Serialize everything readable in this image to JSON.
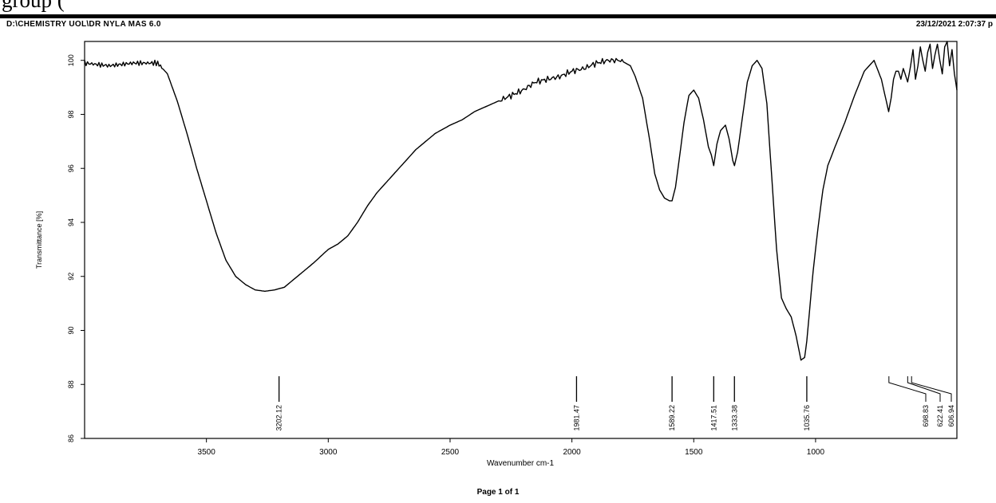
{
  "top_fragment": "group (",
  "header": {
    "path": "D:\\CHEMISTRY UOL\\DR NYLA MAS 6.0",
    "datetime": "23/12/2021   2:07:37 p"
  },
  "footer": {
    "page": "Page 1 of 1"
  },
  "chart_data": {
    "type": "line",
    "title": "",
    "xlabel": "Wavenumber cm-1",
    "ylabel": "Transmittance [%]",
    "xlim": [
      4000,
      420
    ],
    "ylim": [
      86,
      100.7
    ],
    "x_reversed": true,
    "grid": false,
    "xticks": [
      3500,
      3000,
      2500,
      2000,
      1500,
      1000
    ],
    "yticks": [
      86,
      88,
      90,
      92,
      94,
      96,
      98,
      100
    ],
    "series": [
      {
        "x": [
          4000,
          3900,
          3800,
          3700,
          3660,
          3620,
          3580,
          3540,
          3500,
          3460,
          3420,
          3380,
          3340,
          3300,
          3260,
          3220,
          3180,
          3140,
          3100,
          3060,
          3000,
          2960,
          2920,
          2880,
          2840,
          2800,
          2760,
          2720,
          2680,
          2640,
          2600,
          2560,
          2500,
          2450,
          2400,
          2350,
          2300,
          2250,
          2200,
          2150,
          2100,
          2050,
          2000,
          1950,
          1900,
          1850,
          1800,
          1760,
          1740,
          1710,
          1680,
          1660,
          1640,
          1620,
          1600,
          1589,
          1575,
          1560,
          1540,
          1520,
          1500,
          1480,
          1460,
          1440,
          1428,
          1418,
          1405,
          1390,
          1370,
          1355,
          1340,
          1333,
          1320,
          1300,
          1280,
          1260,
          1240,
          1220,
          1200,
          1180,
          1160,
          1140,
          1120,
          1100,
          1080,
          1060,
          1045,
          1036,
          1025,
          1010,
          990,
          970,
          950,
          920,
          880,
          840,
          800,
          760,
          730,
          710,
          700,
          690,
          680,
          670,
          660,
          650,
          640,
          622,
          610,
          600,
          590,
          580,
          570,
          560,
          550,
          540,
          530,
          520,
          510,
          500,
          490,
          480,
          470,
          460,
          450,
          440,
          430,
          420
        ],
        "y": [
          99.9,
          99.8,
          99.9,
          99.9,
          99.5,
          98.5,
          97.3,
          96.0,
          94.8,
          93.6,
          92.6,
          92.0,
          91.7,
          91.5,
          91.45,
          91.5,
          91.6,
          91.9,
          92.2,
          92.5,
          93.0,
          93.2,
          93.5,
          94.0,
          94.6,
          95.1,
          95.5,
          95.9,
          96.3,
          96.7,
          97.0,
          97.3,
          97.6,
          97.8,
          98.1,
          98.3,
          98.5,
          98.7,
          98.9,
          99.2,
          99.3,
          99.4,
          99.6,
          99.7,
          99.9,
          100.0,
          100.0,
          99.8,
          99.4,
          98.6,
          97.0,
          95.8,
          95.2,
          94.9,
          94.8,
          94.8,
          95.3,
          96.3,
          97.7,
          98.7,
          98.9,
          98.6,
          97.8,
          96.8,
          96.5,
          96.1,
          96.9,
          97.4,
          97.6,
          97.1,
          96.3,
          96.1,
          96.6,
          97.9,
          99.2,
          99.8,
          100.0,
          99.7,
          98.4,
          95.7,
          93.0,
          91.2,
          90.8,
          90.5,
          89.8,
          88.9,
          89.0,
          89.6,
          90.7,
          92.2,
          93.8,
          95.2,
          96.1,
          96.8,
          97.7,
          98.7,
          99.6,
          100.0,
          99.3,
          98.5,
          98.1,
          98.6,
          99.3,
          99.6,
          99.6,
          99.3,
          99.7,
          99.2,
          99.8,
          100.4,
          99.3,
          99.8,
          100.5,
          100.0,
          99.6,
          100.3,
          100.6,
          99.7,
          100.2,
          100.6,
          100.0,
          99.5,
          100.5,
          100.7,
          99.8,
          100.4,
          99.5,
          98.9
        ]
      }
    ],
    "peaks": [
      {
        "x": 3202,
        "label": "3202.12"
      },
      {
        "x": 1981,
        "label": "1981.47"
      },
      {
        "x": 1589,
        "label": "1589.22"
      },
      {
        "x": 1418,
        "label": "1417.51"
      },
      {
        "x": 1333,
        "label": "1333.38"
      },
      {
        "x": 1036,
        "label": "1035.76"
      },
      {
        "x": 699,
        "label": "698.83"
      },
      {
        "x": 622,
        "label": "622.41"
      },
      {
        "x": 606,
        "label": "606.94"
      }
    ]
  }
}
